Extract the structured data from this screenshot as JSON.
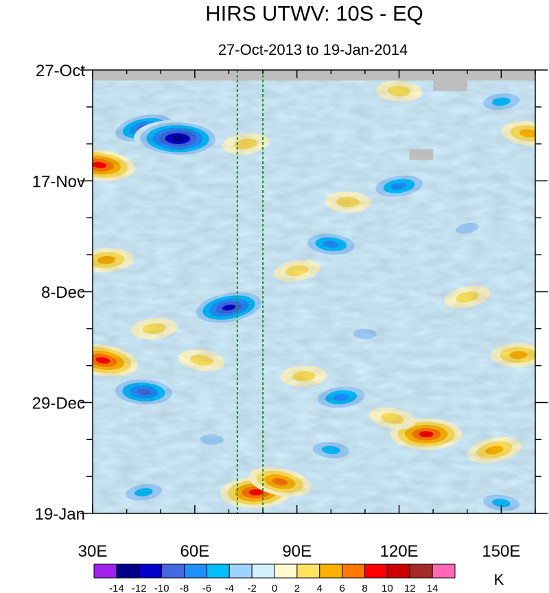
{
  "chart_data": {
    "type": "heatmap",
    "title": "HIRS UTWV: 10S - EQ",
    "subtitle": "27-Oct-2013 to 19-Jan-2014",
    "x_axis": {
      "range": [
        30,
        160
      ],
      "ticks": [
        30,
        60,
        90,
        120,
        150
      ],
      "tick_labels": [
        "30E",
        "60E",
        "90E",
        "120E",
        "150E"
      ]
    },
    "y_axis": {
      "range_days": [
        0,
        84
      ],
      "ticks_days": [
        0,
        21,
        42,
        63,
        84
      ],
      "tick_labels": [
        "27-Oct",
        "17-Nov",
        "8-Dec",
        "29-Dec",
        "19-Jan"
      ]
    },
    "reference_lines_lon": [
      72.5,
      80
    ],
    "missing_data_patches": [
      {
        "lon": [
          30,
          160
        ],
        "day": [
          0,
          2
        ]
      },
      {
        "lon": [
          130,
          140
        ],
        "day": [
          2,
          4
        ]
      },
      {
        "lon": [
          123,
          130
        ],
        "day": [
          15,
          17
        ]
      }
    ],
    "anomaly_features": [
      {
        "lon": 45,
        "day": 11,
        "value": -10
      },
      {
        "lon": 55,
        "day": 13,
        "value": -14
      },
      {
        "lon": 70,
        "day": 45,
        "value": -12
      },
      {
        "lon": 45,
        "day": 61,
        "value": -10
      },
      {
        "lon": 120,
        "day": 22,
        "value": -8
      },
      {
        "lon": 100,
        "day": 33,
        "value": -8
      },
      {
        "lon": 103,
        "day": 62,
        "value": -8
      },
      {
        "lon": 32,
        "day": 18,
        "value": 10
      },
      {
        "lon": 34,
        "day": 36,
        "value": 6
      },
      {
        "lon": 33,
        "day": 55,
        "value": 10
      },
      {
        "lon": 78,
        "day": 80,
        "value": 10
      },
      {
        "lon": 85,
        "day": 78,
        "value": 8
      },
      {
        "lon": 128,
        "day": 69,
        "value": 10
      },
      {
        "lon": 148,
        "day": 72,
        "value": 6
      },
      {
        "lon": 105,
        "day": 25,
        "value": 4
      },
      {
        "lon": 90,
        "day": 38,
        "value": 4
      },
      {
        "lon": 120,
        "day": 4,
        "value": 4
      },
      {
        "lon": 75,
        "day": 14,
        "value": 4
      },
      {
        "lon": 158,
        "day": 12,
        "value": 6
      },
      {
        "lon": 48,
        "day": 49,
        "value": 4
      },
      {
        "lon": 62,
        "day": 55,
        "value": 4
      },
      {
        "lon": 92,
        "day": 58,
        "value": 4
      },
      {
        "lon": 118,
        "day": 66,
        "value": 4
      },
      {
        "lon": 155,
        "day": 54,
        "value": 6
      },
      {
        "lon": 140,
        "day": 43,
        "value": 4
      },
      {
        "lon": 110,
        "day": 50,
        "value": -4
      },
      {
        "lon": 140,
        "day": 30,
        "value": -4
      },
      {
        "lon": 65,
        "day": 70,
        "value": -4
      },
      {
        "lon": 45,
        "day": 80,
        "value": -6
      },
      {
        "lon": 100,
        "day": 72,
        "value": -6
      },
      {
        "lon": 150,
        "day": 6,
        "value": -6
      },
      {
        "lon": 150,
        "day": 82,
        "value": -6
      }
    ],
    "colorbar": {
      "unit": "K",
      "levels": [
        -14,
        -12,
        -10,
        -8,
        -6,
        -4,
        -2,
        0,
        2,
        4,
        6,
        8,
        10,
        12,
        14
      ],
      "level_labels": [
        "-14",
        "-12",
        "-10",
        "-8",
        "-6",
        "-4",
        "-2",
        "0",
        "2",
        "4",
        "6",
        "8",
        "10",
        "12",
        "14"
      ],
      "colors": [
        "#a020f0",
        "#00008b",
        "#0000cd",
        "#4169e1",
        "#1e90ff",
        "#00bfff",
        "#a0d2ff",
        "#d2f0ff",
        "#fffacd",
        "#ffe35e",
        "#ffb300",
        "#ff7800",
        "#ff0000",
        "#cd0000",
        "#a52a2a",
        "#ff69b4"
      ]
    },
    "colors": {
      "missing": "#bebebe",
      "reference_line": "#228b22",
      "frame": "#000000"
    }
  }
}
